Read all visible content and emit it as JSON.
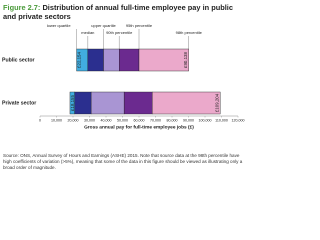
{
  "figure_label": "Figure 2.7:",
  "title": "Distribution of annual full-time employee pay in public and private sectors",
  "source": "Source: ONS, Annual Survey of Hours and Earnings (ASHE) 2015. Note that source data at the 98th percentile have high coefficients of variation (>5%), meaning that some of the data in this figure should be viewed as illustrating only a broad order of magnitude.",
  "chart_data": {
    "type": "range_bar",
    "categories": [
      "Public sector",
      "Private sector"
    ],
    "boundary_names": [
      "lower quartile",
      "median",
      "upper quartile",
      "90th percentile",
      "95th percentile",
      "98th percentile"
    ],
    "segment_colors": [
      "#41ade0",
      "#2b2f8f",
      "#a995d3",
      "#6b2a8f",
      "#eba9cb"
    ],
    "values": [
      [
        22154,
        29000,
        38500,
        48000,
        60000,
        90138
      ],
      [
        18155,
        21000,
        31000,
        51000,
        68000,
        109204
      ]
    ],
    "value_labels": [
      [
        "£22,154",
        null,
        null,
        null,
        null,
        "£90,138"
      ],
      [
        "£18,155",
        null,
        null,
        null,
        null,
        "£109,204"
      ]
    ],
    "xlabel": "Gross annual pay for full-time employee jobs (£)",
    "xlim": [
      0,
      120000
    ],
    "xticks": [
      0,
      {
        "value": 10000,
        "label": "10,000"
      },
      {
        "value": 20000,
        "label": "20,000"
      },
      {
        "value": 30000,
        "label": "30,000"
      },
      {
        "value": 40000,
        "label": "40,000"
      },
      {
        "value": 50000,
        "label": "50,000"
      },
      {
        "value": 60000,
        "label": "60,000"
      },
      {
        "value": 70000,
        "label": "70,000"
      },
      {
        "value": 80000,
        "label": "80,000"
      },
      {
        "value": 90000,
        "label": "90,000"
      },
      {
        "value": 100000,
        "label": "100,000"
      },
      {
        "value": 110000,
        "label": "110,000"
      },
      {
        "value": 120000,
        "label": "120,000"
      }
    ]
  }
}
